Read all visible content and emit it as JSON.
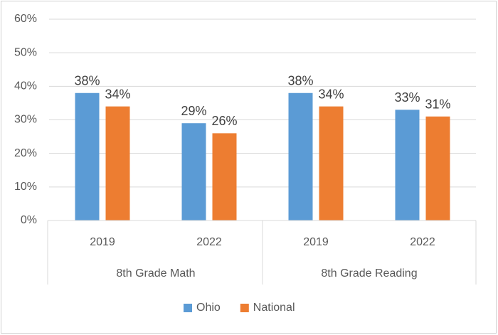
{
  "chart_data": {
    "type": "bar",
    "groups": [
      {
        "name": "8th Grade Math",
        "categories": [
          "2019",
          "2022"
        ]
      },
      {
        "name": "8th Grade Reading",
        "categories": [
          "2019",
          "2022"
        ]
      }
    ],
    "series": [
      {
        "name": "Ohio",
        "color": "#5b9bd5",
        "values": [
          38,
          29,
          38,
          33
        ],
        "value_labels": [
          "38%",
          "29%",
          "38%",
          "33%"
        ]
      },
      {
        "name": "National",
        "color": "#ed7d31",
        "values": [
          34,
          26,
          34,
          31
        ],
        "value_labels": [
          "34%",
          "26%",
          "34%",
          "31%"
        ]
      }
    ],
    "ylim": [
      0,
      60
    ],
    "yticks": [
      {
        "value": 0,
        "label": "0%"
      },
      {
        "value": 10,
        "label": "10%"
      },
      {
        "value": 20,
        "label": "20%"
      },
      {
        "value": 30,
        "label": "30%"
      },
      {
        "value": 40,
        "label": "40%"
      },
      {
        "value": 50,
        "label": "50%"
      },
      {
        "value": 60,
        "label": "60%"
      }
    ],
    "grid": true,
    "legend": "bottom"
  }
}
